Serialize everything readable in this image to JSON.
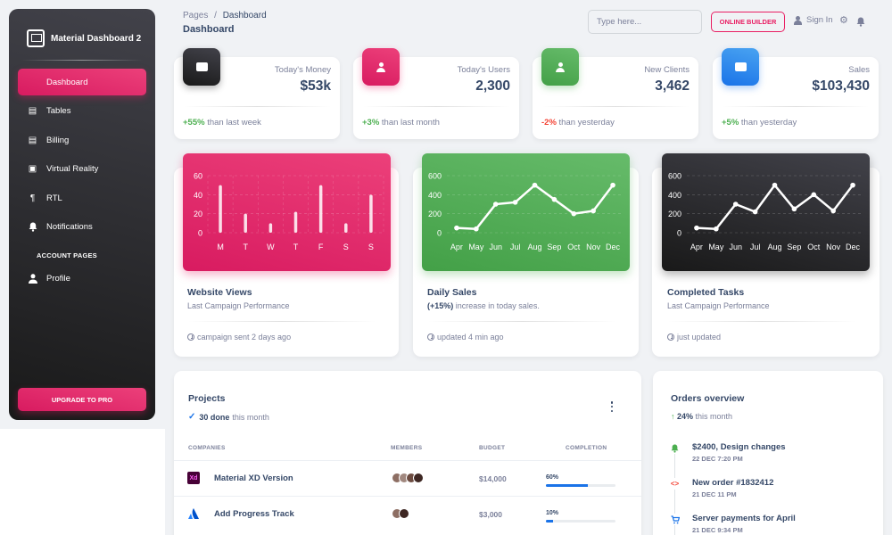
{
  "sidebar": {
    "brand": "Material Dashboard 2",
    "items": [
      {
        "label": "Dashboard",
        "icon": "dashboard-icon"
      },
      {
        "label": "Tables",
        "icon": "table-icon"
      },
      {
        "label": "Billing",
        "icon": "receipt-icon"
      },
      {
        "label": "Virtual Reality",
        "icon": "view-in-ar-icon"
      },
      {
        "label": "RTL",
        "icon": "format-textdirection-r-to-l-icon"
      },
      {
        "label": "Notifications",
        "icon": "bell-icon"
      }
    ],
    "section": "ACCOUNT PAGES",
    "account_items": [
      {
        "label": "Profile",
        "icon": "person-icon"
      }
    ],
    "upgrade_label": "UPGRADE TO PRO"
  },
  "header": {
    "breadcrumb_root": "Pages",
    "breadcrumb_sep": "/",
    "breadcrumb_current": "Dashboard",
    "title": "Dashboard",
    "search_placeholder": "Type here...",
    "builder_label": "ONLINE BUILDER",
    "signin_label": "Sign In"
  },
  "stats": [
    {
      "label": "Today's Money",
      "value": "$53k",
      "change": "+55%",
      "note": " than last week",
      "positive": true,
      "color": "#191919",
      "icon": "weekend-icon"
    },
    {
      "label": "Today's Users",
      "value": "2,300",
      "change": "+3%",
      "note": " than last month",
      "positive": true,
      "color": "#e91e63",
      "icon": "person-icon"
    },
    {
      "label": "New Clients",
      "value": "3,462",
      "change": "-2%",
      "note": " than yesterday",
      "positive": false,
      "color": "#4caf50",
      "icon": "person-icon"
    },
    {
      "label": "Sales",
      "value": "$103,430",
      "change": "+5%",
      "note": " than yesterday",
      "positive": true,
      "color": "#1a73e8",
      "icon": "weekend-icon"
    }
  ],
  "charts": [
    {
      "title": "Website Views",
      "subtitle": "Last Campaign Performance",
      "footer": "campaign sent 2 days ago"
    },
    {
      "title": "Daily Sales",
      "subtitle_bold": "(+15%)",
      "subtitle": " increase in today sales.",
      "footer": "updated 4 min ago"
    },
    {
      "title": "Completed Tasks",
      "subtitle": "Last Campaign Performance",
      "footer": "just updated"
    }
  ],
  "chart_data": [
    {
      "type": "bar",
      "categories": [
        "M",
        "T",
        "W",
        "T",
        "F",
        "S",
        "S"
      ],
      "values": [
        50,
        20,
        10,
        22,
        50,
        10,
        40
      ],
      "ylim": [
        0,
        60
      ],
      "yticks": [
        0,
        20,
        40,
        60
      ],
      "background": "#e91e63"
    },
    {
      "type": "line",
      "categories": [
        "Apr",
        "May",
        "Jun",
        "Jul",
        "Aug",
        "Sep",
        "Oct",
        "Nov",
        "Dec"
      ],
      "values": [
        50,
        40,
        300,
        320,
        500,
        350,
        200,
        230,
        500
      ],
      "ylim": [
        0,
        600
      ],
      "yticks": [
        0,
        200,
        400,
        600
      ],
      "background": "#4caf50"
    },
    {
      "type": "line",
      "categories": [
        "Apr",
        "May",
        "Jun",
        "Jul",
        "Aug",
        "Sep",
        "Oct",
        "Nov",
        "Dec"
      ],
      "values": [
        50,
        40,
        300,
        220,
        500,
        250,
        400,
        230,
        500
      ],
      "ylim": [
        0,
        600
      ],
      "yticks": [
        0,
        200,
        400,
        600
      ],
      "background": "#191919"
    }
  ],
  "projects": {
    "title": "Projects",
    "done_bold": "30 done",
    "done_rest": " this month",
    "headers": {
      "companies": "COMPANIES",
      "members": "MEMBERS",
      "budget": "BUDGET",
      "completion": "COMPLETION"
    },
    "rows": [
      {
        "name": "Material XD Version",
        "logo": "Xd",
        "budget": "$14,000",
        "completion_label": "60%",
        "completion": 60,
        "members": 4
      },
      {
        "name": "Add Progress Track",
        "logo": "atlassian-icon",
        "budget": "$3,000",
        "completion_label": "10%",
        "completion": 10,
        "members": 2
      }
    ]
  },
  "orders": {
    "title": "Orders overview",
    "sub_bold": "24%",
    "sub_rest": " this month",
    "items": [
      {
        "title": "$2400, Design changes",
        "date": "22 DEC 7:20 PM",
        "icon": "bell-icon",
        "color": "#4caf50"
      },
      {
        "title": "New order #1832412",
        "date": "21 DEC 11 PM",
        "icon": "code-icon",
        "color": "#f44335"
      },
      {
        "title": "Server payments for April",
        "date": "21 DEC 9:34 PM",
        "icon": "cart-icon",
        "color": "#1a73e8"
      }
    ]
  }
}
